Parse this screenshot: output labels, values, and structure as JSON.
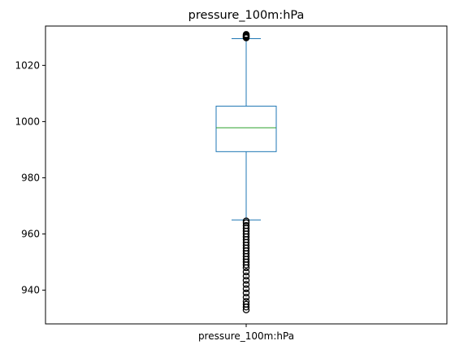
{
  "chart_data": {
    "type": "box",
    "title": "pressure_100m:hPa",
    "categories": [
      "pressure_100m:hPa"
    ],
    "xlabel": "",
    "ylabel": "",
    "ylim": [
      928,
      1034
    ],
    "yticks": [
      940,
      960,
      980,
      1000,
      1020
    ],
    "grid": false,
    "legend": "none",
    "box": {
      "whisker_low": 965,
      "q1": 989.3,
      "median": 997.8,
      "q3": 1005.5,
      "whisker_high": 1029.5
    },
    "outliers_high": [
      1029.8,
      1030.1,
      1030.4,
      1030.7,
      1031.0
    ],
    "outliers_low": [
      933,
      934,
      935,
      936,
      937.5,
      939,
      940.5,
      942,
      943.5,
      945,
      946.5,
      948,
      949,
      950,
      951,
      952,
      953,
      954,
      955,
      956,
      957,
      958,
      959,
      960,
      961,
      962,
      963,
      964,
      964.6
    ],
    "colors": {
      "box": "#1f77b4",
      "median": "#2ca02c",
      "outlier": "#000000"
    }
  }
}
